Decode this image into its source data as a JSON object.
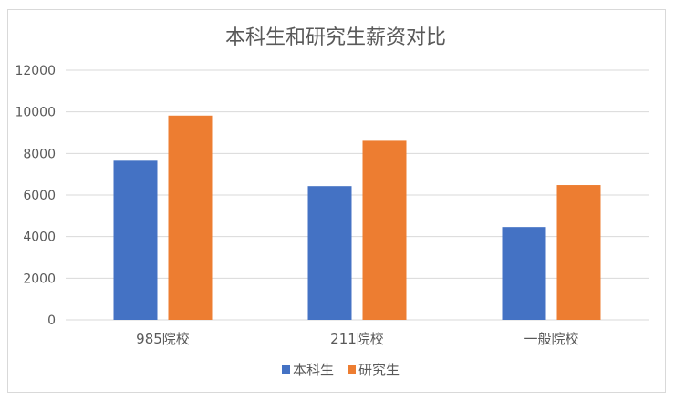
{
  "chart_data": {
    "type": "bar",
    "title": "本科生和研究生薪资对比",
    "categories": [
      "985院校",
      "211院校",
      "一般院校"
    ],
    "series": [
      {
        "name": "本科生",
        "values": [
          7650,
          6430,
          4460
        ],
        "color": "#4472C4"
      },
      {
        "name": "研究生",
        "values": [
          9820,
          8610,
          6480
        ],
        "color": "#ED7D31"
      }
    ],
    "ylim": [
      0,
      12000
    ],
    "yticks": [
      0,
      2000,
      4000,
      6000,
      8000,
      10000,
      12000
    ],
    "grid": true,
    "legend_position": "bottom"
  }
}
